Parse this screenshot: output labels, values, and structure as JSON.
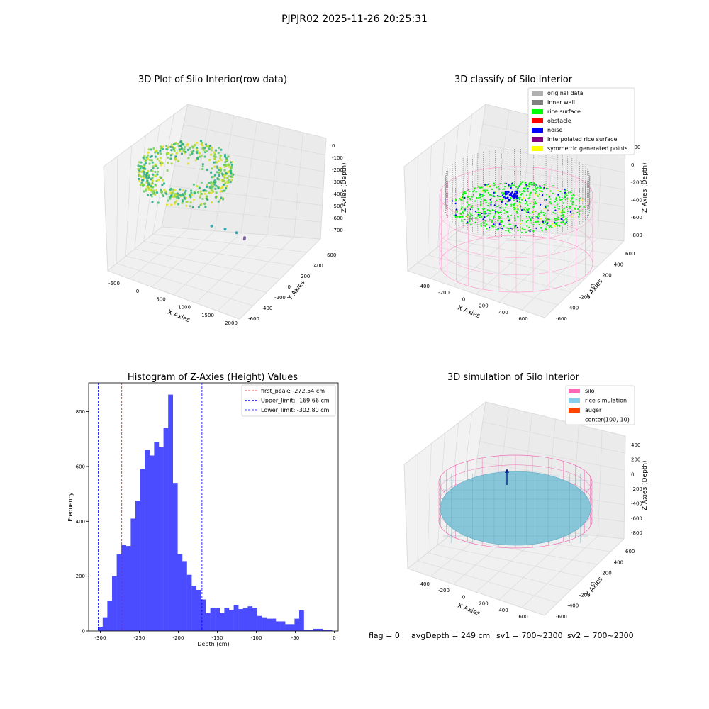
{
  "suptitle": "PJPJR02 2025-11-26 20:25:31",
  "status": {
    "flag": "flag = 0",
    "avg_depth": "avgDepth = 249 cm",
    "sv1": "sv1 = 700~2300",
    "sv2": "sv2 = 700~2300"
  },
  "chart_data": [
    {
      "type": "scatter",
      "title": "3D Plot of Silo Interior(row data)",
      "xlabel": "X Axies",
      "ylabel": "Y Axies",
      "zlabel": "Z Axies (Depth)",
      "xticks": [
        "-500",
        "0",
        "500",
        "1000",
        "1500",
        "2000"
      ],
      "yticks": [
        "-600",
        "-400",
        "-200",
        "0",
        "200",
        "400",
        "600"
      ],
      "zticks": [
        "0",
        "-100",
        "-200",
        "-300",
        "-400",
        "-500",
        "-600",
        "-700"
      ],
      "outliers": [
        {
          "x": 1200,
          "y": -150,
          "z": -450
        },
        {
          "x": 1500,
          "y": -250,
          "z": -520
        },
        {
          "x": 1750,
          "y": -330,
          "z": -610
        },
        {
          "x": 2000,
          "y": -500,
          "z": -720
        },
        {
          "x": 2010,
          "y": -520,
          "z": -760
        }
      ],
      "colormap": "viridis"
    },
    {
      "type": "scatter",
      "title": "3D classify of Silo Interior",
      "xlabel": "X Axies",
      "ylabel": "Y Axies",
      "zlabel": "Z Axies (Depth)",
      "xticks": [
        "-400",
        "-200",
        "0",
        "200",
        "400",
        "600"
      ],
      "yticks": [
        "-600",
        "-400",
        "-200",
        "0",
        "200",
        "400",
        "600"
      ],
      "zticks": [
        "200",
        "0",
        "-200",
        "-400",
        "-600",
        "-800"
      ],
      "legend": [
        {
          "label": "original data",
          "color": "#b0b0b0"
        },
        {
          "label": "inner wall",
          "color": "#808080"
        },
        {
          "label": "rice surface",
          "color": "#00ff00"
        },
        {
          "label": "obstacle",
          "color": "#ff0000"
        },
        {
          "label": "noise",
          "color": "#0000ff"
        },
        {
          "label": "interpolated rice surface",
          "color": "#800080"
        },
        {
          "label": "symmetric generated points",
          "color": "#ffff00"
        }
      ],
      "legend_placement": "top-right"
    },
    {
      "type": "bar",
      "title": "Histogram of Z-Axies (Height) Values",
      "xlabel": "Depth (cm)",
      "ylabel": "Frequency",
      "xlim": [
        -315,
        5
      ],
      "ylim": [
        0,
        905
      ],
      "xticks": [
        -300,
        -250,
        -200,
        -150,
        -100,
        -50,
        0
      ],
      "yticks": [
        0,
        200,
        400,
        600,
        800
      ],
      "bin_start": -303,
      "bin_width": 6.0,
      "values": [
        15,
        50,
        110,
        200,
        280,
        315,
        310,
        410,
        475,
        590,
        660,
        640,
        690,
        670,
        740,
        862,
        540,
        280,
        255,
        205,
        165,
        150,
        115,
        65,
        85,
        85,
        65,
        85,
        75,
        95,
        80,
        85,
        90,
        85,
        55,
        50,
        45,
        45,
        35,
        35,
        25,
        25,
        45,
        75,
        5,
        5,
        8,
        8,
        3,
        3
      ],
      "color": "#4b4bff",
      "vlines": [
        {
          "label": "first_peak: -272.54 cm",
          "x": -272.54,
          "color": "#ff0000"
        },
        {
          "label": "Upper_limit: -169.66 cm",
          "x": -169.66,
          "color": "#0000ff"
        },
        {
          "label": "Lower_limit: -302.80 cm",
          "x": -302.8,
          "color": "#0000ff"
        }
      ],
      "legend_placement": "top-right"
    },
    {
      "type": "scatter",
      "title": "3D simulation of Silo Interior",
      "xlabel": "X Axies",
      "ylabel": "Y Axies",
      "zlabel": "Z Axies (Depth)",
      "xticks": [
        "-400",
        "-200",
        "0",
        "200",
        "400",
        "600"
      ],
      "yticks": [
        "-600",
        "-400",
        "-200",
        "0",
        "200",
        "400",
        "600"
      ],
      "zticks": [
        "400",
        "200",
        "0",
        "-200",
        "-400",
        "-600",
        "-800"
      ],
      "legend": [
        {
          "label": "silo",
          "color": "#ff69b4"
        },
        {
          "label": "rice simulation",
          "color": "#87ceeb"
        },
        {
          "label": "auger",
          "color": "#ff4500"
        },
        {
          "label": "center(100,-10)",
          "color": ""
        }
      ],
      "legend_placement": "top-right"
    }
  ]
}
